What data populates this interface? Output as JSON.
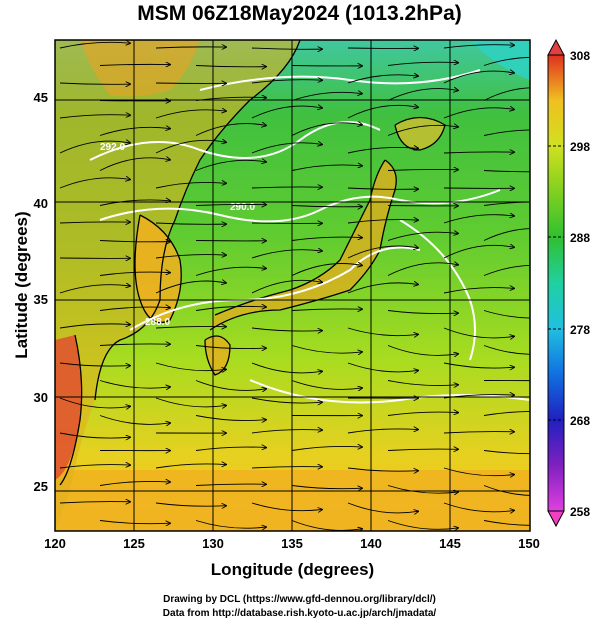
{
  "title": "MSM 06Z18May2024 (1013.2hPa)",
  "axes": {
    "xlabel": "Longitude (degrees)",
    "ylabel": "Latitude  (degrees)",
    "xlim": [
      120,
      150
    ],
    "ylim": [
      22.4,
      47.6
    ],
    "xticks": [
      "120",
      "125",
      "130",
      "135",
      "140",
      "145",
      "150"
    ],
    "yticks": [
      "25",
      "30",
      "35",
      "40",
      "45"
    ]
  },
  "colorbar": {
    "range": [
      258,
      308
    ],
    "ticks": [
      "258",
      "268",
      "278",
      "288",
      "298",
      "308"
    ],
    "colors": [
      "#e040e0",
      "#8020c0",
      "#2020c0",
      "#1070e0",
      "#20c0e0",
      "#20d0a0",
      "#30c030",
      "#80d020",
      "#d0e020",
      "#f0c020",
      "#f08020",
      "#e03020"
    ]
  },
  "contours": [
    "292.0",
    "290.0",
    "288.0"
  ],
  "credits": {
    "line1": "Drawing by DCL (https://www.gfd-dennou.org/library/dcl/)",
    "line2": "Data from http://database.rish.kyoto-u.ac.jp/arch/jmadata/"
  }
}
